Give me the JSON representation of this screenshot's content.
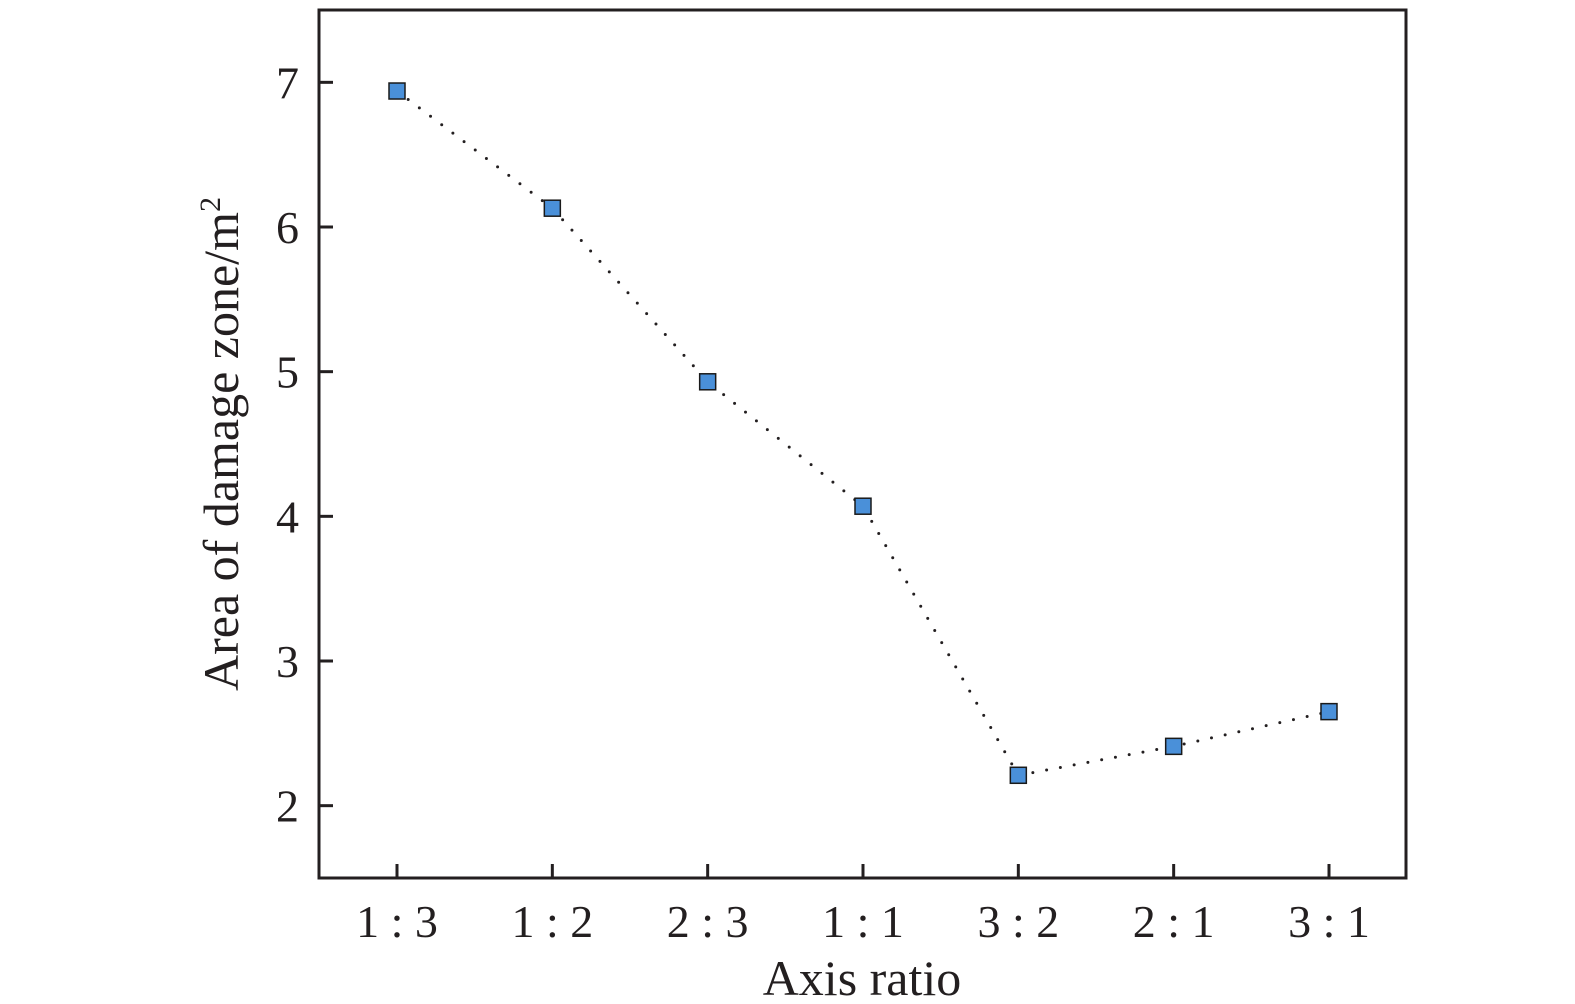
{
  "chart_data": {
    "type": "scatter",
    "categories": [
      "1 : 3",
      "1 : 2",
      "2 : 3",
      "1 : 1",
      "3 : 2",
      "2 : 1",
      "3 : 1"
    ],
    "series": [
      {
        "values": [
          6.94,
          6.13,
          4.93,
          4.07,
          2.21,
          2.41,
          2.65
        ],
        "marker": "square",
        "line": "dotted"
      }
    ],
    "xlabel": "Axis ratio",
    "ylabel": "Area of damage zone/m",
    "ylabel_superscript": "2",
    "ylim": [
      1.5,
      7.5
    ],
    "yticks": [
      2,
      3,
      4,
      5,
      6,
      7
    ],
    "grid": false,
    "colors": {
      "marker_fill": "#4a90d9",
      "marker_stroke": "#1a1a1a",
      "line": "#231f20",
      "axis": "#231f20"
    }
  }
}
